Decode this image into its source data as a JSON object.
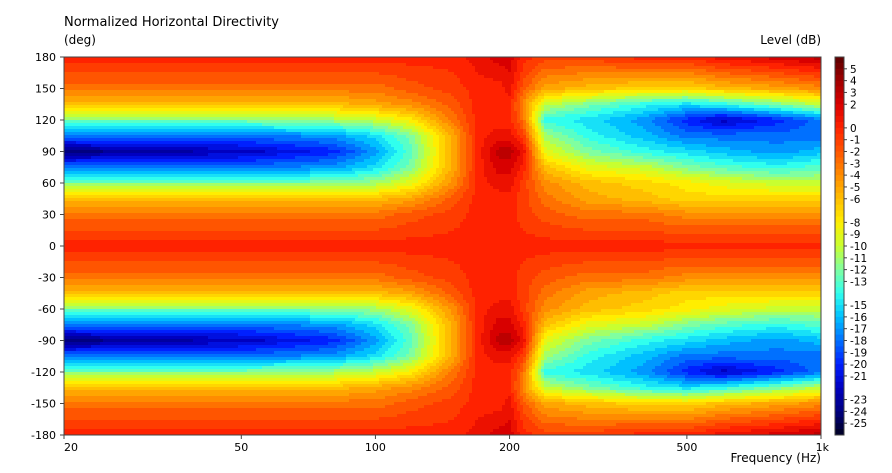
{
  "chart_data": {
    "type": "heatmap",
    "title": "Normalized Horizontal Directivity",
    "y_unit_label": "(deg)",
    "colorbar_label": "Level  (dB)",
    "xlabel": "Frequency  (Hz)",
    "x_scale": "log",
    "x_range_hz": [
      20,
      1000
    ],
    "y_range_deg": [
      -180,
      180
    ],
    "x_ticks": [
      {
        "value": 20,
        "label": "20"
      },
      {
        "value": 50,
        "label": "50"
      },
      {
        "value": 100,
        "label": "100"
      },
      {
        "value": 200,
        "label": "200"
      },
      {
        "value": 500,
        "label": "500"
      },
      {
        "value": 1000,
        "label": "1k"
      }
    ],
    "y_ticks": [
      180,
      150,
      120,
      90,
      60,
      30,
      0,
      -30,
      -60,
      -90,
      -120,
      -150,
      -180
    ],
    "colorbar_ticks": [
      5,
      4,
      3,
      2,
      0,
      -1,
      -2,
      -3,
      -4,
      -5,
      -6,
      -8,
      -9,
      -10,
      -11,
      -12,
      -13,
      -15,
      -16,
      -17,
      -18,
      -19,
      -20,
      -21,
      -23,
      -24,
      -25
    ],
    "colorbar_range_db": [
      -26,
      6
    ],
    "color_stops": [
      {
        "db": 6,
        "color": "#5a0000"
      },
      {
        "db": 4,
        "color": "#a00000"
      },
      {
        "db": 2,
        "color": "#d80000"
      },
      {
        "db": 0,
        "color": "#ff2200"
      },
      {
        "db": -2,
        "color": "#ff5500"
      },
      {
        "db": -4,
        "color": "#ff8c00"
      },
      {
        "db": -6,
        "color": "#ffbe00"
      },
      {
        "db": -8,
        "color": "#ffee00"
      },
      {
        "db": -10,
        "color": "#c8ff30"
      },
      {
        "db": -12,
        "color": "#80ffa0"
      },
      {
        "db": -14,
        "color": "#30ffee"
      },
      {
        "db": -16,
        "color": "#00c0ff"
      },
      {
        "db": -18,
        "color": "#0070ff"
      },
      {
        "db": -20,
        "color": "#0020ff"
      },
      {
        "db": -22,
        "color": "#0000c0"
      },
      {
        "db": -24,
        "color": "#000080"
      },
      {
        "db": -26,
        "color": "#000020"
      }
    ],
    "grid": false,
    "legend": "colorbar-right",
    "level_grid_db": {
      "frequencies_hz": [
        20,
        30,
        50,
        80,
        100,
        120,
        150,
        170,
        190,
        200,
        215,
        240,
        300,
        400,
        500,
        600,
        800,
        1000
      ],
      "angles_deg": [
        0,
        30,
        45,
        60,
        75,
        90,
        105,
        120,
        135,
        150,
        180
      ],
      "rows": [
        [
          0,
          0,
          0,
          0,
          0,
          0,
          0,
          0,
          0,
          0,
          0,
          0,
          0,
          0,
          0,
          0,
          0,
          0
        ],
        [
          -3,
          -3,
          -3,
          -3,
          -3,
          -2,
          -1,
          0,
          0,
          0,
          -1,
          -2,
          -3,
          -3,
          -4,
          -4,
          -4,
          -4
        ],
        [
          -6,
          -6,
          -6,
          -6,
          -6,
          -5,
          -2,
          0,
          0,
          0,
          -1,
          -3,
          -5,
          -6,
          -7,
          -7,
          -7,
          -7
        ],
        [
          -12,
          -12,
          -12,
          -12,
          -11,
          -9,
          -4,
          0,
          1,
          1,
          -1,
          -4,
          -6,
          -7,
          -8,
          -9,
          -10,
          -10
        ],
        [
          -18,
          -18,
          -18,
          -17,
          -15,
          -12,
          -5,
          0,
          2,
          2,
          0,
          -6,
          -9,
          -10,
          -12,
          -13,
          -14,
          -13
        ],
        [
          -24,
          -23,
          -22,
          -20,
          -17,
          -13,
          -5,
          0,
          3,
          3,
          1,
          -9,
          -12,
          -14,
          -15,
          -16,
          -17,
          -16
        ],
        [
          -18,
          -18,
          -18,
          -17,
          -15,
          -12,
          -5,
          0,
          1,
          1,
          -1,
          -11,
          -14,
          -16,
          -18,
          -18,
          -18,
          -18
        ],
        [
          -12,
          -12,
          -12,
          -11,
          -10,
          -8,
          -3,
          0,
          0,
          0,
          -3,
          -14,
          -15,
          -17,
          -20,
          -22,
          -20,
          -18
        ],
        [
          -6,
          -6,
          -6,
          -6,
          -5,
          -4,
          -2,
          0,
          0,
          0,
          -4,
          -10,
          -12,
          -14,
          -15,
          -14,
          -12,
          -10
        ],
        [
          -3,
          -3,
          -3,
          -3,
          -3,
          -2,
          -1,
          0,
          0,
          1,
          -2,
          -5,
          -6,
          -7,
          -7,
          -6,
          -5,
          -4
        ],
        [
          0,
          0,
          0,
          0,
          0,
          0,
          0,
          1,
          2,
          2,
          0,
          -1,
          -1,
          0,
          0,
          1,
          2,
          3
        ]
      ]
    }
  }
}
